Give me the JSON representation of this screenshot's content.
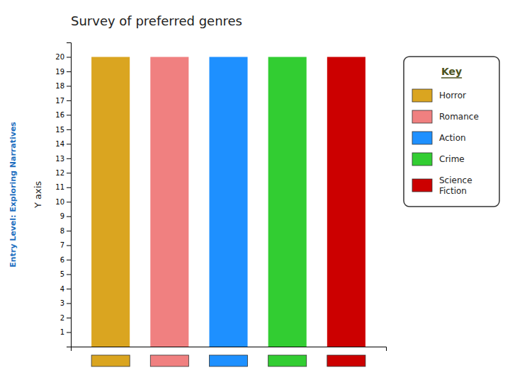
{
  "chart_data": {
    "type": "bar",
    "title": "Survey of preferred genres",
    "ylabel": "Y axis",
    "annotations": [
      "Entry Level: Exploring Narratives"
    ],
    "categories": [
      "Horror",
      "Romance",
      "Action",
      "Crime",
      "Science\nFiction"
    ],
    "values": [
      20,
      20,
      20,
      20,
      20
    ],
    "colors": [
      "#DAA520",
      "#F08080",
      "#1E90FF",
      "#32CD32",
      "#CC0000"
    ],
    "ylim": [
      0,
      21
    ],
    "yticks": [
      1,
      2,
      3,
      4,
      5,
      6,
      7,
      8,
      9,
      10,
      11,
      12,
      13,
      14,
      15,
      16,
      17,
      18,
      19,
      20
    ],
    "grid": false,
    "legend": "right",
    "legend_title": "Key",
    "tick_labels": "y"
  }
}
